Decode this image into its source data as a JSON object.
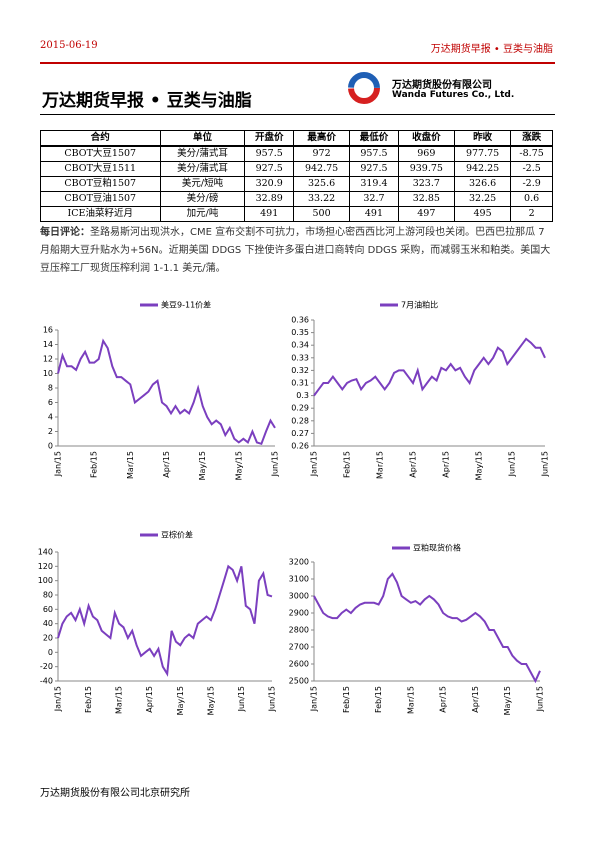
{
  "header": {
    "date": "2015-06-19",
    "right": "万达期货早报 • 豆类与油脂"
  },
  "title": "万达期货早报 • 豆类与油脂",
  "logo": {
    "cn": "万达期货股份有限公司",
    "en": "Wanda Futures Co., Ltd."
  },
  "table": {
    "headers": [
      "合约",
      "单位",
      "开盘价",
      "最高价",
      "最低价",
      "收盘价",
      "昨收",
      "涨跌"
    ],
    "rows": [
      [
        "CBOT大豆1507",
        "美分/蒲式耳",
        "957.5",
        "972",
        "957.5",
        "969",
        "977.75",
        "-8.75"
      ],
      [
        "CBOT大豆1511",
        "美分/蒲式耳",
        "927.5",
        "942.75",
        "927.5",
        "939.75",
        "942.25",
        "-2.5"
      ],
      [
        "CBOT豆粕1507",
        "美元/短吨",
        "320.9",
        "325.6",
        "319.4",
        "323.7",
        "326.6",
        "-2.9"
      ],
      [
        "CBOT豆油1507",
        "美分/磅",
        "32.89",
        "33.22",
        "32.7",
        "32.85",
        "32.25",
        "0.6"
      ],
      [
        "ICE油菜籽近月",
        "加元/吨",
        "491",
        "500",
        "491",
        "497",
        "495",
        "2"
      ]
    ]
  },
  "comment": {
    "label": "每日评论：",
    "text": "圣路易斯河出现洪水，CME 宣布交割不可抗力，市场担心密西西比河上游河段也关闭。巴西巴拉那瓜 7 月船期大豆升贴水为+56N。近期美国 DDGS 下挫使许多蛋白进口商转向 DDGS 采购，而减弱玉米和粕类。美国大豆压榨工厂现货压榨利润 1-1.1 美元/蒲。"
  },
  "chart_data": [
    {
      "type": "line",
      "ylim": [
        0,
        16
      ],
      "yticks": [
        0,
        2,
        4,
        6,
        8,
        10,
        12,
        14,
        16
      ],
      "categories": [
        "Jan/15",
        null,
        null,
        null,
        null,
        null,
        null,
        null,
        "Feb/15",
        null,
        null,
        null,
        null,
        null,
        null,
        null,
        "Mar/15",
        null,
        null,
        null,
        null,
        null,
        null,
        null,
        "Apr/15",
        null,
        null,
        null,
        null,
        null,
        null,
        null,
        "May/15",
        null,
        null,
        null,
        null,
        null,
        null,
        null,
        "May/15",
        null,
        null,
        null,
        null,
        null,
        null,
        null,
        "Jun/15"
      ],
      "series": [
        {
          "name": "美豆9-11价差",
          "color": "#7b3fbf",
          "values": [
            10,
            12.5,
            11,
            11,
            10.5,
            12,
            13,
            11.5,
            11.5,
            12,
            14.5,
            13.5,
            11,
            9.5,
            9.5,
            9,
            8.5,
            6,
            6.5,
            7,
            7.5,
            8.5,
            9,
            6,
            5.5,
            4.5,
            5.5,
            4.5,
            5,
            4.5,
            6,
            8,
            5.5,
            4,
            3,
            3.5,
            3,
            1.5,
            2.5,
            1,
            0.5,
            1,
            0.5,
            2,
            0.5,
            0.3,
            2,
            3.5,
            2.5
          ]
        }
      ]
    },
    {
      "type": "line",
      "ylim": [
        0.26,
        0.36
      ],
      "yticks": [
        0.26,
        0.27,
        0.28,
        0.29,
        0.3,
        0.31,
        0.32,
        0.33,
        0.34,
        0.35,
        0.36
      ],
      "categories": [
        "Jan/15",
        null,
        null,
        null,
        null,
        null,
        null,
        "Feb/15",
        null,
        null,
        null,
        null,
        null,
        null,
        "Mar/15",
        null,
        null,
        null,
        null,
        null,
        null,
        "Apr/15",
        null,
        null,
        null,
        null,
        null,
        null,
        "Apr/15",
        null,
        null,
        null,
        null,
        null,
        null,
        "May/15",
        null,
        null,
        null,
        null,
        null,
        null,
        "Jun/15",
        null,
        null,
        null,
        null,
        null,
        null,
        "Jun/15"
      ],
      "series": [
        {
          "name": "7月油粕比",
          "color": "#7b3fbf",
          "values": [
            0.3,
            0.305,
            0.31,
            0.31,
            0.315,
            0.31,
            0.305,
            0.31,
            0.312,
            0.313,
            0.305,
            0.31,
            0.312,
            0.315,
            0.31,
            0.305,
            0.31,
            0.318,
            0.32,
            0.32,
            0.315,
            0.31,
            0.32,
            0.305,
            0.31,
            0.315,
            0.312,
            0.322,
            0.32,
            0.325,
            0.32,
            0.322,
            0.315,
            0.31,
            0.32,
            0.325,
            0.33,
            0.325,
            0.33,
            0.338,
            0.335,
            0.325,
            0.33,
            0.335,
            0.34,
            0.345,
            0.342,
            0.338,
            0.338,
            0.33
          ]
        }
      ]
    },
    {
      "type": "line",
      "ylim": [
        -40,
        140
      ],
      "yticks": [
        -40,
        -20,
        0,
        20,
        40,
        60,
        80,
        100,
        120,
        140
      ],
      "categories": [
        "Jan/15",
        null,
        null,
        null,
        null,
        null,
        null,
        "Feb/15",
        null,
        null,
        null,
        null,
        null,
        null,
        "Mar/15",
        null,
        null,
        null,
        null,
        null,
        null,
        "Apr/15",
        null,
        null,
        null,
        null,
        null,
        null,
        "May/15",
        null,
        null,
        null,
        null,
        null,
        null,
        "May/15",
        null,
        null,
        null,
        null,
        null,
        null,
        "Jun/15",
        null,
        null,
        null,
        null,
        null,
        null,
        "Jun/15"
      ],
      "series": [
        {
          "name": "豆棕价差",
          "color": "#7b3fbf",
          "values": [
            20,
            40,
            50,
            55,
            45,
            60,
            40,
            65,
            50,
            45,
            30,
            25,
            20,
            55,
            40,
            35,
            20,
            30,
            10,
            -5,
            0,
            5,
            -5,
            5,
            -20,
            -30,
            30,
            15,
            10,
            20,
            25,
            20,
            40,
            45,
            50,
            45,
            60,
            80,
            100,
            120,
            115,
            100,
            120,
            65,
            60,
            40,
            100,
            110,
            80,
            78
          ]
        }
      ]
    },
    {
      "type": "line",
      "ylim": [
        2500,
        3200
      ],
      "yticks": [
        2500,
        2600,
        2700,
        2800,
        2900,
        3000,
        3100,
        3200
      ],
      "categories": [
        "Jan/15",
        null,
        null,
        null,
        null,
        null,
        null,
        "Feb/15",
        null,
        null,
        null,
        null,
        null,
        null,
        "Feb/15",
        null,
        null,
        null,
        null,
        null,
        null,
        "Mar/15",
        null,
        null,
        null,
        null,
        null,
        null,
        "Apr/15",
        null,
        null,
        null,
        null,
        null,
        null,
        "Apr/15",
        null,
        null,
        null,
        null,
        null,
        null,
        "May/15",
        null,
        null,
        null,
        null,
        null,
        null,
        "Jun/15"
      ],
      "series": [
        {
          "name": "豆粕现货价格",
          "color": "#7b3fbf",
          "values": [
            3000,
            2950,
            2900,
            2880,
            2870,
            2870,
            2900,
            2920,
            2900,
            2930,
            2950,
            2960,
            2960,
            2960,
            2950,
            3000,
            3100,
            3130,
            3080,
            3000,
            2980,
            2960,
            2970,
            2950,
            2980,
            3000,
            2980,
            2950,
            2900,
            2880,
            2870,
            2870,
            2850,
            2860,
            2880,
            2900,
            2880,
            2850,
            2800,
            2800,
            2750,
            2700,
            2700,
            2650,
            2620,
            2600,
            2600,
            2550,
            2500,
            2560
          ]
        }
      ]
    }
  ],
  "footer": "万达期货股份有限公司北京研究所"
}
